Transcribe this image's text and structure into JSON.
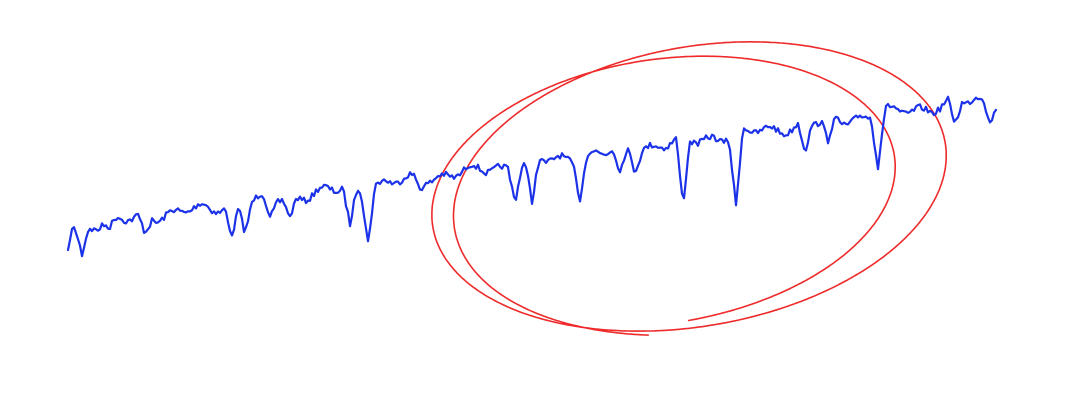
{
  "colors": {
    "background": "#ffffff",
    "trace": "#1c32e8",
    "loop": "#ee2a2a"
  },
  "drawing": {
    "trace_name": "blue-waveform",
    "loop_name": "red-spiral-loops",
    "loop_turns": 2
  }
}
